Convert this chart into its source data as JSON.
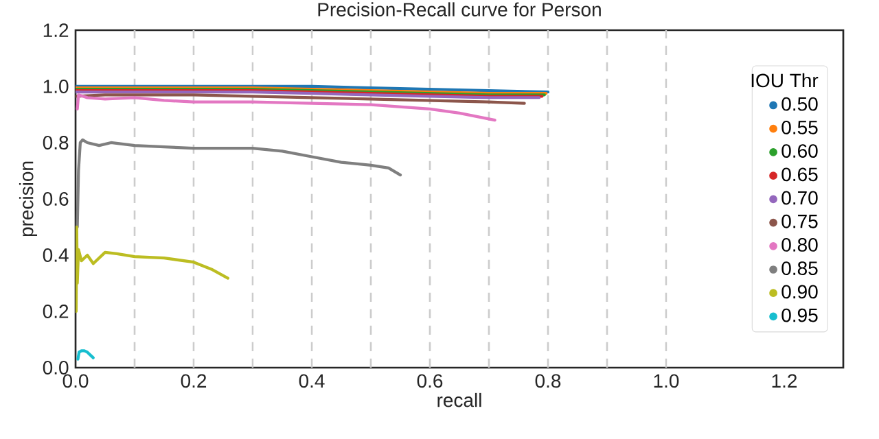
{
  "chart_data": {
    "type": "line",
    "title": "Precision-Recall curve for Person",
    "xlabel": "recall",
    "ylabel": "precision",
    "legend_title": "IOU Thr",
    "legend": "right",
    "grid": false,
    "line_style": "solid",
    "xlim": [
      0.0,
      1.3
    ],
    "ylim": [
      0.0,
      1.2
    ],
    "xticks": [
      {
        "value": 0.0,
        "label": "0.0"
      },
      {
        "value": 0.2,
        "label": "0.2"
      },
      {
        "value": 0.4,
        "label": "0.4"
      },
      {
        "value": 0.6,
        "label": "0.6"
      },
      {
        "value": 0.8,
        "label": "0.8"
      },
      {
        "value": 1.0,
        "label": "1.0"
      },
      {
        "value": 1.2,
        "label": "1.2"
      }
    ],
    "yticks": [
      {
        "value": 0.0,
        "label": "0.0"
      },
      {
        "value": 0.2,
        "label": "0.2"
      },
      {
        "value": 0.4,
        "label": "0.4"
      },
      {
        "value": 0.6,
        "label": "0.6"
      },
      {
        "value": 0.8,
        "label": "0.8"
      },
      {
        "value": 1.0,
        "label": "1.0"
      },
      {
        "value": 1.2,
        "label": "1.2"
      }
    ],
    "ref_lines": [
      {
        "axis": "x",
        "value": 0.1,
        "color": "#cccccc",
        "line_style": "dashed"
      },
      {
        "axis": "x",
        "value": 0.2,
        "color": "#cccccc",
        "line_style": "dashed"
      },
      {
        "axis": "x",
        "value": 0.3,
        "color": "#cccccc",
        "line_style": "dashed"
      },
      {
        "axis": "x",
        "value": 0.4,
        "color": "#cccccc",
        "line_style": "dashed"
      },
      {
        "axis": "x",
        "value": 0.5,
        "color": "#cccccc",
        "line_style": "dashed"
      },
      {
        "axis": "x",
        "value": 0.6,
        "color": "#cccccc",
        "line_style": "dashed"
      },
      {
        "axis": "x",
        "value": 0.7,
        "color": "#cccccc",
        "line_style": "dashed"
      },
      {
        "axis": "x",
        "value": 0.8,
        "color": "#cccccc",
        "line_style": "dashed"
      },
      {
        "axis": "x",
        "value": 0.9,
        "color": "#cccccc",
        "line_style": "dashed"
      },
      {
        "axis": "x",
        "value": 1.0,
        "color": "#cccccc",
        "line_style": "dashed"
      }
    ],
    "series": [
      {
        "name": "0.50",
        "color": "#1f77b4",
        "x": [
          0.0,
          0.1,
          0.2,
          0.3,
          0.4,
          0.5,
          0.6,
          0.7,
          0.8
        ],
        "values": [
          1.0,
          1.0,
          1.0,
          1.0,
          1.0,
          0.995,
          0.99,
          0.985,
          0.98
        ]
      },
      {
        "name": "0.55",
        "color": "#ff7f0e",
        "x": [
          0.0,
          0.1,
          0.2,
          0.3,
          0.4,
          0.5,
          0.6,
          0.7,
          0.797
        ],
        "values": [
          0.995,
          0.995,
          0.995,
          0.995,
          0.99,
          0.985,
          0.98,
          0.975,
          0.975
        ]
      },
      {
        "name": "0.60",
        "color": "#2ca02c",
        "x": [
          0.0,
          0.1,
          0.2,
          0.3,
          0.4,
          0.5,
          0.6,
          0.7,
          0.794
        ],
        "values": [
          0.99,
          0.99,
          0.99,
          0.99,
          0.985,
          0.98,
          0.975,
          0.97,
          0.97
        ]
      },
      {
        "name": "0.65",
        "color": "#d62728",
        "x": [
          0.0,
          0.1,
          0.2,
          0.3,
          0.4,
          0.5,
          0.6,
          0.7,
          0.79
        ],
        "values": [
          0.985,
          0.985,
          0.985,
          0.985,
          0.98,
          0.975,
          0.97,
          0.965,
          0.965
        ]
      },
      {
        "name": "0.70",
        "color": "#9467bd",
        "x": [
          0.0,
          0.1,
          0.2,
          0.3,
          0.4,
          0.5,
          0.6,
          0.7,
          0.785
        ],
        "values": [
          0.98,
          0.98,
          0.98,
          0.98,
          0.975,
          0.97,
          0.965,
          0.96,
          0.96
        ]
      },
      {
        "name": "0.75",
        "color": "#8c564b",
        "x": [
          0.0,
          0.05,
          0.1,
          0.2,
          0.3,
          0.4,
          0.5,
          0.6,
          0.7,
          0.76
        ],
        "values": [
          0.965,
          0.97,
          0.97,
          0.97,
          0.965,
          0.96,
          0.955,
          0.95,
          0.945,
          0.94
        ]
      },
      {
        "name": "0.80",
        "color": "#e377c2",
        "x": [
          0.003,
          0.005,
          0.02,
          0.05,
          0.1,
          0.15,
          0.2,
          0.3,
          0.4,
          0.5,
          0.6,
          0.65,
          0.71
        ],
        "values": [
          0.92,
          0.97,
          0.96,
          0.955,
          0.96,
          0.95,
          0.945,
          0.945,
          0.94,
          0.935,
          0.92,
          0.905,
          0.88
        ]
      },
      {
        "name": "0.85",
        "color": "#7f7f7f",
        "x": [
          0.003,
          0.005,
          0.008,
          0.012,
          0.02,
          0.04,
          0.06,
          0.1,
          0.15,
          0.2,
          0.3,
          0.35,
          0.4,
          0.45,
          0.5,
          0.53,
          0.55
        ],
        "values": [
          0.5,
          0.7,
          0.8,
          0.81,
          0.8,
          0.79,
          0.8,
          0.79,
          0.785,
          0.78,
          0.78,
          0.77,
          0.75,
          0.73,
          0.72,
          0.71,
          0.685
        ]
      },
      {
        "name": "0.90",
        "color": "#bcbd22",
        "x": [
          0.001,
          0.002,
          0.003,
          0.005,
          0.01,
          0.02,
          0.03,
          0.05,
          0.07,
          0.1,
          0.15,
          0.2,
          0.23,
          0.258
        ],
        "values": [
          0.2,
          0.5,
          0.3,
          0.42,
          0.38,
          0.4,
          0.37,
          0.41,
          0.405,
          0.395,
          0.39,
          0.375,
          0.35,
          0.318
        ]
      },
      {
        "name": "0.95",
        "color": "#17becf",
        "x": [
          0.004,
          0.006,
          0.01,
          0.015,
          0.02,
          0.025,
          0.03
        ],
        "values": [
          0.03,
          0.055,
          0.06,
          0.06,
          0.055,
          0.045,
          0.035
        ]
      }
    ]
  }
}
